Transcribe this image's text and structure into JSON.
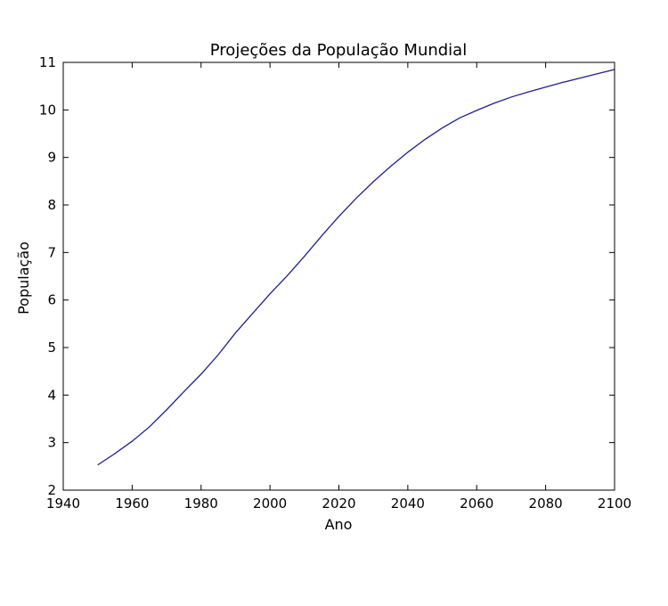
{
  "chart_data": {
    "type": "line",
    "title": "Projeções da População Mundial",
    "xlabel": "Ano",
    "ylabel": "População",
    "xlim": [
      1940,
      2100
    ],
    "ylim": [
      2,
      11
    ],
    "xticks": [
      "1940",
      "1960",
      "1980",
      "2000",
      "2020",
      "2040",
      "2060",
      "2080",
      "2100"
    ],
    "yticks": [
      "2",
      "3",
      "4",
      "5",
      "6",
      "7",
      "8",
      "9",
      "10",
      "11"
    ],
    "grid": false,
    "series": [
      {
        "color": "#1f1f8f",
        "x": [
          1950,
          1955,
          1960,
          1965,
          1970,
          1975,
          1980,
          1985,
          1990,
          1995,
          2000,
          2005,
          2010,
          2015,
          2020,
          2025,
          2030,
          2035,
          2040,
          2045,
          2050,
          2055,
          2060,
          2065,
          2070,
          2075,
          2080,
          2085,
          2090,
          2095,
          2100
        ],
        "y": [
          2.53,
          2.77,
          3.03,
          3.33,
          3.69,
          4.07,
          4.44,
          4.85,
          5.31,
          5.72,
          6.13,
          6.51,
          6.92,
          7.35,
          7.76,
          8.14,
          8.49,
          8.81,
          9.11,
          9.38,
          9.62,
          9.83,
          9.99,
          10.14,
          10.27,
          10.38,
          10.48,
          10.58,
          10.67,
          10.76,
          10.85
        ]
      }
    ]
  }
}
